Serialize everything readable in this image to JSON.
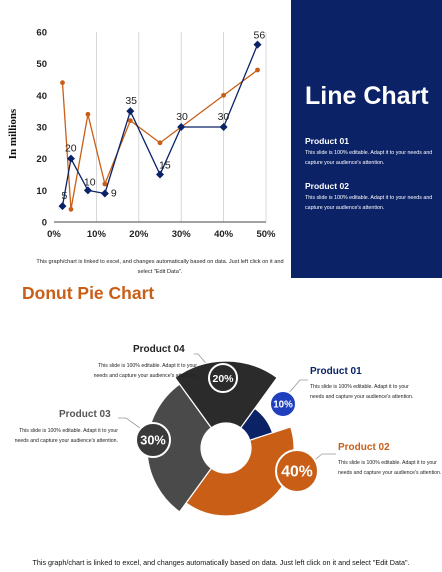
{
  "line_slide": {
    "title": "Line Chart",
    "products": [
      {
        "name": "Product 01",
        "text": "This slide is 100% editable. Adapt it to your needs and capture your audience's attention."
      },
      {
        "name": "Product 02",
        "text": "This slide is 100% editable. Adapt it to your needs and capture your audience's attention."
      }
    ],
    "note": "This graph/chart is linked to excel, and changes automatically based on data. Just left click on it and select \"Edit Data\"."
  },
  "donut_slide": {
    "title": "Donut Pie Chart",
    "note": "This graph/chart is linked to excel, and changes automatically based on data. Just left click on it and select \"Edit Data\".",
    "items": [
      {
        "name": "Product 01",
        "text": "This slide is 100% editable. Adapt it to your needs and capture your audience's attention.",
        "pct_label": "10%"
      },
      {
        "name": "Product 02",
        "text": "This slide is 100% editable. Adapt it to your needs and capture your audience's attention.",
        "pct_label": "40%"
      },
      {
        "name": "Product 03",
        "text": "This slide is 100% editable. Adapt it to your needs and capture your audience's attention.",
        "pct_label": "30%"
      },
      {
        "name": "Product 04",
        "text": "This slide is 100% editable. Adapt it to your needs and capture your audience's attention.",
        "pct_label": "20%"
      }
    ]
  },
  "colors": {
    "navy": "#0b2266",
    "orange": "#c95e17",
    "dark": "#2b2b2b",
    "gray": "#4a4a4a",
    "blue": "#1f3fbf"
  },
  "chart_data": [
    {
      "type": "line",
      "ylabel": "In millions",
      "xlim": [
        0,
        50
      ],
      "ylim": [
        0,
        60
      ],
      "xticks": [
        0,
        10,
        20,
        30,
        40,
        50
      ],
      "xtick_labels": [
        "0%",
        "10%",
        "20%",
        "30%",
        "40%",
        "50%"
      ],
      "yticks": [
        0,
        10,
        20,
        30,
        40,
        50,
        60
      ],
      "ytick_labels": [
        "0",
        "10",
        "20",
        "30",
        "40",
        "50",
        "60"
      ],
      "grid": "vertical",
      "series": [
        {
          "color": "#0b2266",
          "marker": "diamond",
          "x": [
            2,
            4,
            8,
            12,
            18,
            25,
            30,
            40,
            48
          ],
          "y": [
            5,
            20,
            10,
            9,
            35,
            15,
            30,
            30,
            56
          ],
          "labels": [
            "5",
            "20",
            "10",
            "9",
            "35",
            "15",
            "30",
            "30",
            "56"
          ]
        },
        {
          "color": "#c95e17",
          "marker": "circle",
          "x": [
            2,
            4,
            8,
            12,
            18,
            25,
            30,
            40,
            48
          ],
          "y": [
            44,
            4,
            34,
            12,
            32,
            25,
            30,
            40,
            48
          ]
        }
      ]
    },
    {
      "type": "pie",
      "variant": "donut",
      "labels": [
        "Product 01",
        "Product 02",
        "Product 03",
        "Product 04"
      ],
      "values": [
        10,
        40,
        30,
        20
      ],
      "colors": [
        "#0b2266",
        "#c95e17",
        "#4a4a4a",
        "#2b2b2b"
      ]
    }
  ]
}
